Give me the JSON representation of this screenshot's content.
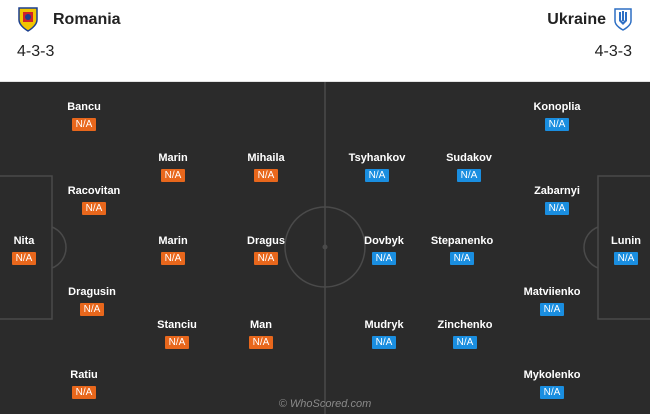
{
  "home": {
    "name": "Romania",
    "formation": "4-3-3",
    "color": "#e8671c",
    "crest_icon": "romania-crest-icon",
    "players": [
      {
        "name": "Nita",
        "rating": "N/A"
      },
      {
        "name": "Bancu",
        "rating": "N/A"
      },
      {
        "name": "Racovitan",
        "rating": "N/A"
      },
      {
        "name": "Dragusin",
        "rating": "N/A"
      },
      {
        "name": "Ratiu",
        "rating": "N/A"
      },
      {
        "name": "Marin",
        "rating": "N/A"
      },
      {
        "name": "Marin",
        "rating": "N/A"
      },
      {
        "name": "Stanciu",
        "rating": "N/A"
      },
      {
        "name": "Mihaila",
        "rating": "N/A"
      },
      {
        "name": "Dragus",
        "rating": "N/A"
      },
      {
        "name": "Man",
        "rating": "N/A"
      }
    ]
  },
  "away": {
    "name": "Ukraine",
    "formation": "4-3-3",
    "color": "#1a8ee0",
    "crest_icon": "ukraine-crest-icon",
    "players": [
      {
        "name": "Lunin",
        "rating": "N/A"
      },
      {
        "name": "Konoplia",
        "rating": "N/A"
      },
      {
        "name": "Zabarnyi",
        "rating": "N/A"
      },
      {
        "name": "Matviienko",
        "rating": "N/A"
      },
      {
        "name": "Mykolenko",
        "rating": "N/A"
      },
      {
        "name": "Sudakov",
        "rating": "N/A"
      },
      {
        "name": "Stepanenko",
        "rating": "N/A"
      },
      {
        "name": "Zinchenko",
        "rating": "N/A"
      },
      {
        "name": "Tsyhankov",
        "rating": "N/A"
      },
      {
        "name": "Dovbyk",
        "rating": "N/A"
      },
      {
        "name": "Mudryk",
        "rating": "N/A"
      }
    ]
  },
  "watermark": "© WhoScored.com",
  "pitch_color": "#2b2b2b"
}
